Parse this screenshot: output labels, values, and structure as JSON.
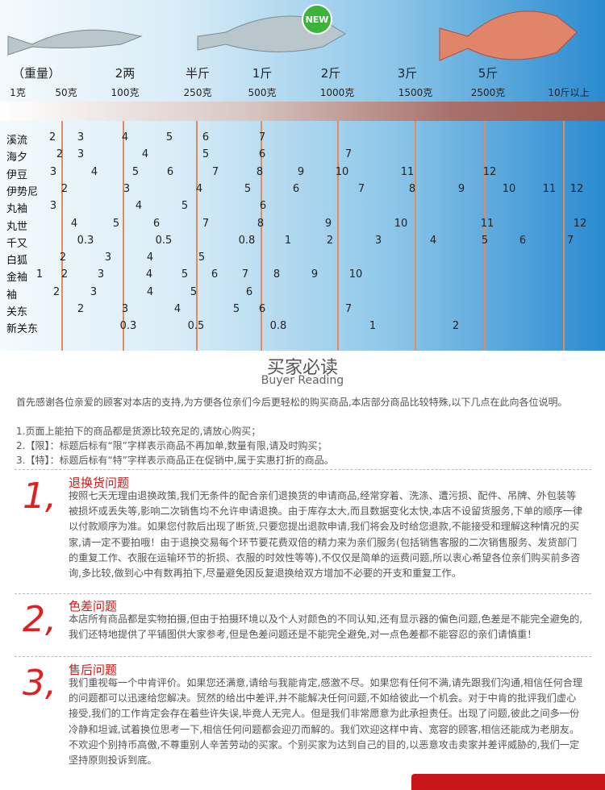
{
  "header": {
    "badge": "NEW",
    "weights": [
      "（重量）",
      "2两",
      "半斤",
      "1斤",
      "2斤",
      "3斤",
      "5斤"
    ],
    "grams": [
      "1克",
      "50克",
      "100克",
      "250克",
      "500克",
      "1000克",
      "1500克",
      "2500克",
      "10斤以上"
    ]
  },
  "table": {
    "rows": [
      {
        "name": "溪流",
        "sizes": [
          2,
          3,
          4,
          5,
          6,
          7
        ]
      },
      {
        "name": "海夕",
        "sizes": [
          2,
          3,
          4,
          5,
          6,
          7
        ]
      },
      {
        "name": "伊豆",
        "sizes": [
          3,
          4,
          5,
          6,
          7,
          8,
          9,
          10,
          11,
          12
        ]
      },
      {
        "name": "伊势尼",
        "sizes": [
          2,
          3,
          4,
          5,
          6,
          7,
          8,
          9,
          10,
          11,
          12
        ]
      },
      {
        "name": "丸袖",
        "sizes": [
          3,
          4,
          5,
          6
        ]
      },
      {
        "name": "丸世",
        "sizes": [
          4,
          5,
          6,
          7,
          8,
          9,
          10,
          11,
          12
        ]
      },
      {
        "name": "千又",
        "sizes": [
          0.3,
          0.5,
          0.8,
          1,
          2,
          3,
          4,
          5,
          6,
          7
        ]
      },
      {
        "name": "白狐",
        "sizes": [
          2,
          3,
          4,
          5
        ]
      },
      {
        "name": "金袖",
        "sizes": [
          1,
          2,
          3,
          4,
          5,
          6,
          7,
          8,
          9,
          10
        ]
      },
      {
        "name": "袖",
        "sizes": [
          2,
          3,
          4,
          5,
          6
        ]
      },
      {
        "name": "关东",
        "sizes": [
          2,
          3,
          4,
          5,
          6,
          7
        ]
      },
      {
        "name": "新关东",
        "sizes": [
          0.3,
          0.5,
          0.8,
          1,
          2
        ]
      }
    ]
  },
  "reading": {
    "title": "买家必读",
    "subtitle": "Buyer Reading",
    "intro": [
      "首先感谢各位亲爱的顾客对本店的支持,为方便各位亲们今后更轻松的购买商品,本店部分商品比较特殊,以下几点在此向各位说明。",
      "1.页面上能拍下的商品都是货源比较充足的,请放心购买；",
      "2.【限】：标题后标有“限”字样表示商品不再加单,数量有限,请及时购买；",
      "3.【特】：标题后标有“特”字样表示商品正在促销中,属于实惠打折的商品。"
    ],
    "sections": [
      {
        "number": "1,",
        "title": "退换货问题",
        "body": "按照七天无理由退换政策,我们无条件的配合亲们退换货的申请商品,经常穿着、洗涤、遭污损、配件、吊牌、外包装等被损坏或丢失等,影响二次销售均不允许申请退换。由于库存太大,而且数据变化太快,本店不设留货服务,下单的顺序一律以付款顺序为准。如果您付款后出现了断货,只要您提出退款申请,我们将会及时给您退款,不能接受和理解这种情况的买家,请一定不要拍哦！由于退换交易每个环节要花费双倍的精力来为亲们服务(包括销售客服的二次销售服务、发货部门的重复工作、衣服在运输环节的折损、衣服的时效性等等),不仅仅是简单的运费问题,所以衷心希望各位亲们购买前多咨询,多比较,做到心中有数再拍下,尽量避免因反复退换给双方增加不必要的开支和重复工作。"
      },
      {
        "number": "2,",
        "title": "色差问题",
        "body": "本店所有商品都是实物拍摄,但由于拍摄环境以及个人对颜色的不同认知,还有显示器的偏色问题,色差是不能完全避免的,我们还特地提供了平铺图供大家参考,但是色差问题还是不能完全避免,对一点色差都不能容忍的亲们请慎重！"
      },
      {
        "number": "3,",
        "title": "售后问题",
        "body": "我们重视每一个中肯评价。如果您还满意,请给与我能肯定,感激不尽。如果您有任何不满,请先跟我们沟通,相信任何合理的问题都可以迅速给您解决。贸然的给出中差评,并不能解决任何问题,不如给彼此一个机会。对于中肯的批评我们虚心接受,我们的工作肯定会存在着些许失误,毕竟人无完人。但是我们非常愿意为此承担责任。出现了问题,彼此之间多一份冷静和坦诚,试着换位思考一下,相信任何问题都会迎刃而解的。我们欢迎这样中肯、宽容的顾客,相信还能成为老朋友。不欢迎个别持币高傲,不尊重别人辛苦劳动的买家。个别买家为达到自己的目的,以恶意攻击卖家并差评威胁的,我们一定坚持原则投诉到底。"
      }
    ]
  }
}
